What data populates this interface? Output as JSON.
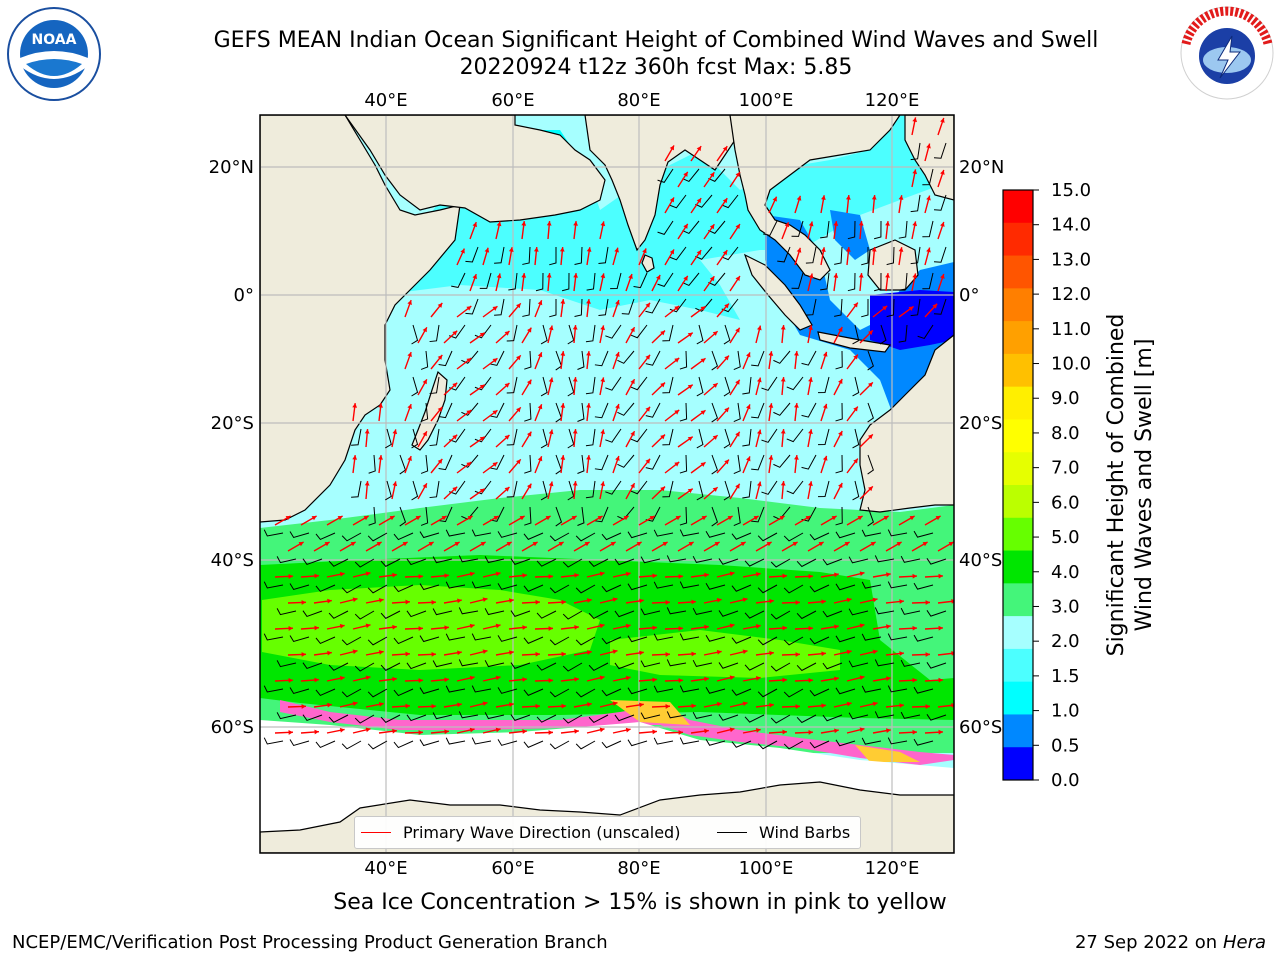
{
  "header": {
    "title_line1": "GEFS MEAN Indian Ocean Significant Height of Combined Wind Waves and Swell",
    "title_line2": "20220924 t12z 360h fcst   Max: 5.85"
  },
  "map": {
    "lon_ticks": [
      "40°E",
      "60°E",
      "80°E",
      "100°E",
      "120°E"
    ],
    "lat_ticks": [
      "20°N",
      "0°",
      "20°S",
      "40°S",
      "60°S"
    ],
    "land_color": "#efecdc",
    "grid": true
  },
  "legend": {
    "wave_label": "Primary Wave Direction (unscaled)",
    "wave_color": "#ff0000",
    "barb_label": "Wind Barbs",
    "barb_color": "#000000"
  },
  "colorbar": {
    "label": "Significant Height of Combined Wind Waves and Swell [m]",
    "label_line1": "Significant Height of Combined",
    "label_line2": "Wind Waves and Swell [m]",
    "ticks": [
      "15.0",
      "14.0",
      "13.0",
      "12.0",
      "11.0",
      "10.0",
      "9.0",
      "8.0",
      "7.0",
      "6.0",
      "5.0",
      "4.0",
      "3.0",
      "2.0",
      "1.5",
      "1.0",
      "0.5",
      "0.0"
    ],
    "colors_top_to_bottom": [
      "#ff0000",
      "#ff2a00",
      "#ff5500",
      "#ff7f00",
      "#ffa000",
      "#ffc000",
      "#ffef00",
      "#ffff00",
      "#e6ff00",
      "#bbff00",
      "#66ff00",
      "#00e600",
      "#44f57a",
      "#a6ffff",
      "#4cffff",
      "#00ffff",
      "#0088ff",
      "#0000ff"
    ]
  },
  "logos": {
    "left": "NOAA",
    "right": "NATIONAL WEATHER SERVICE"
  },
  "caption": "Sea Ice Concentration > 15% is shown in pink to yellow",
  "footer": {
    "left": "NCEP/EMC/Verification Post Processing Product Generation Branch",
    "right_date": "27 Sep 2022 on",
    "right_host": "Hera"
  }
}
